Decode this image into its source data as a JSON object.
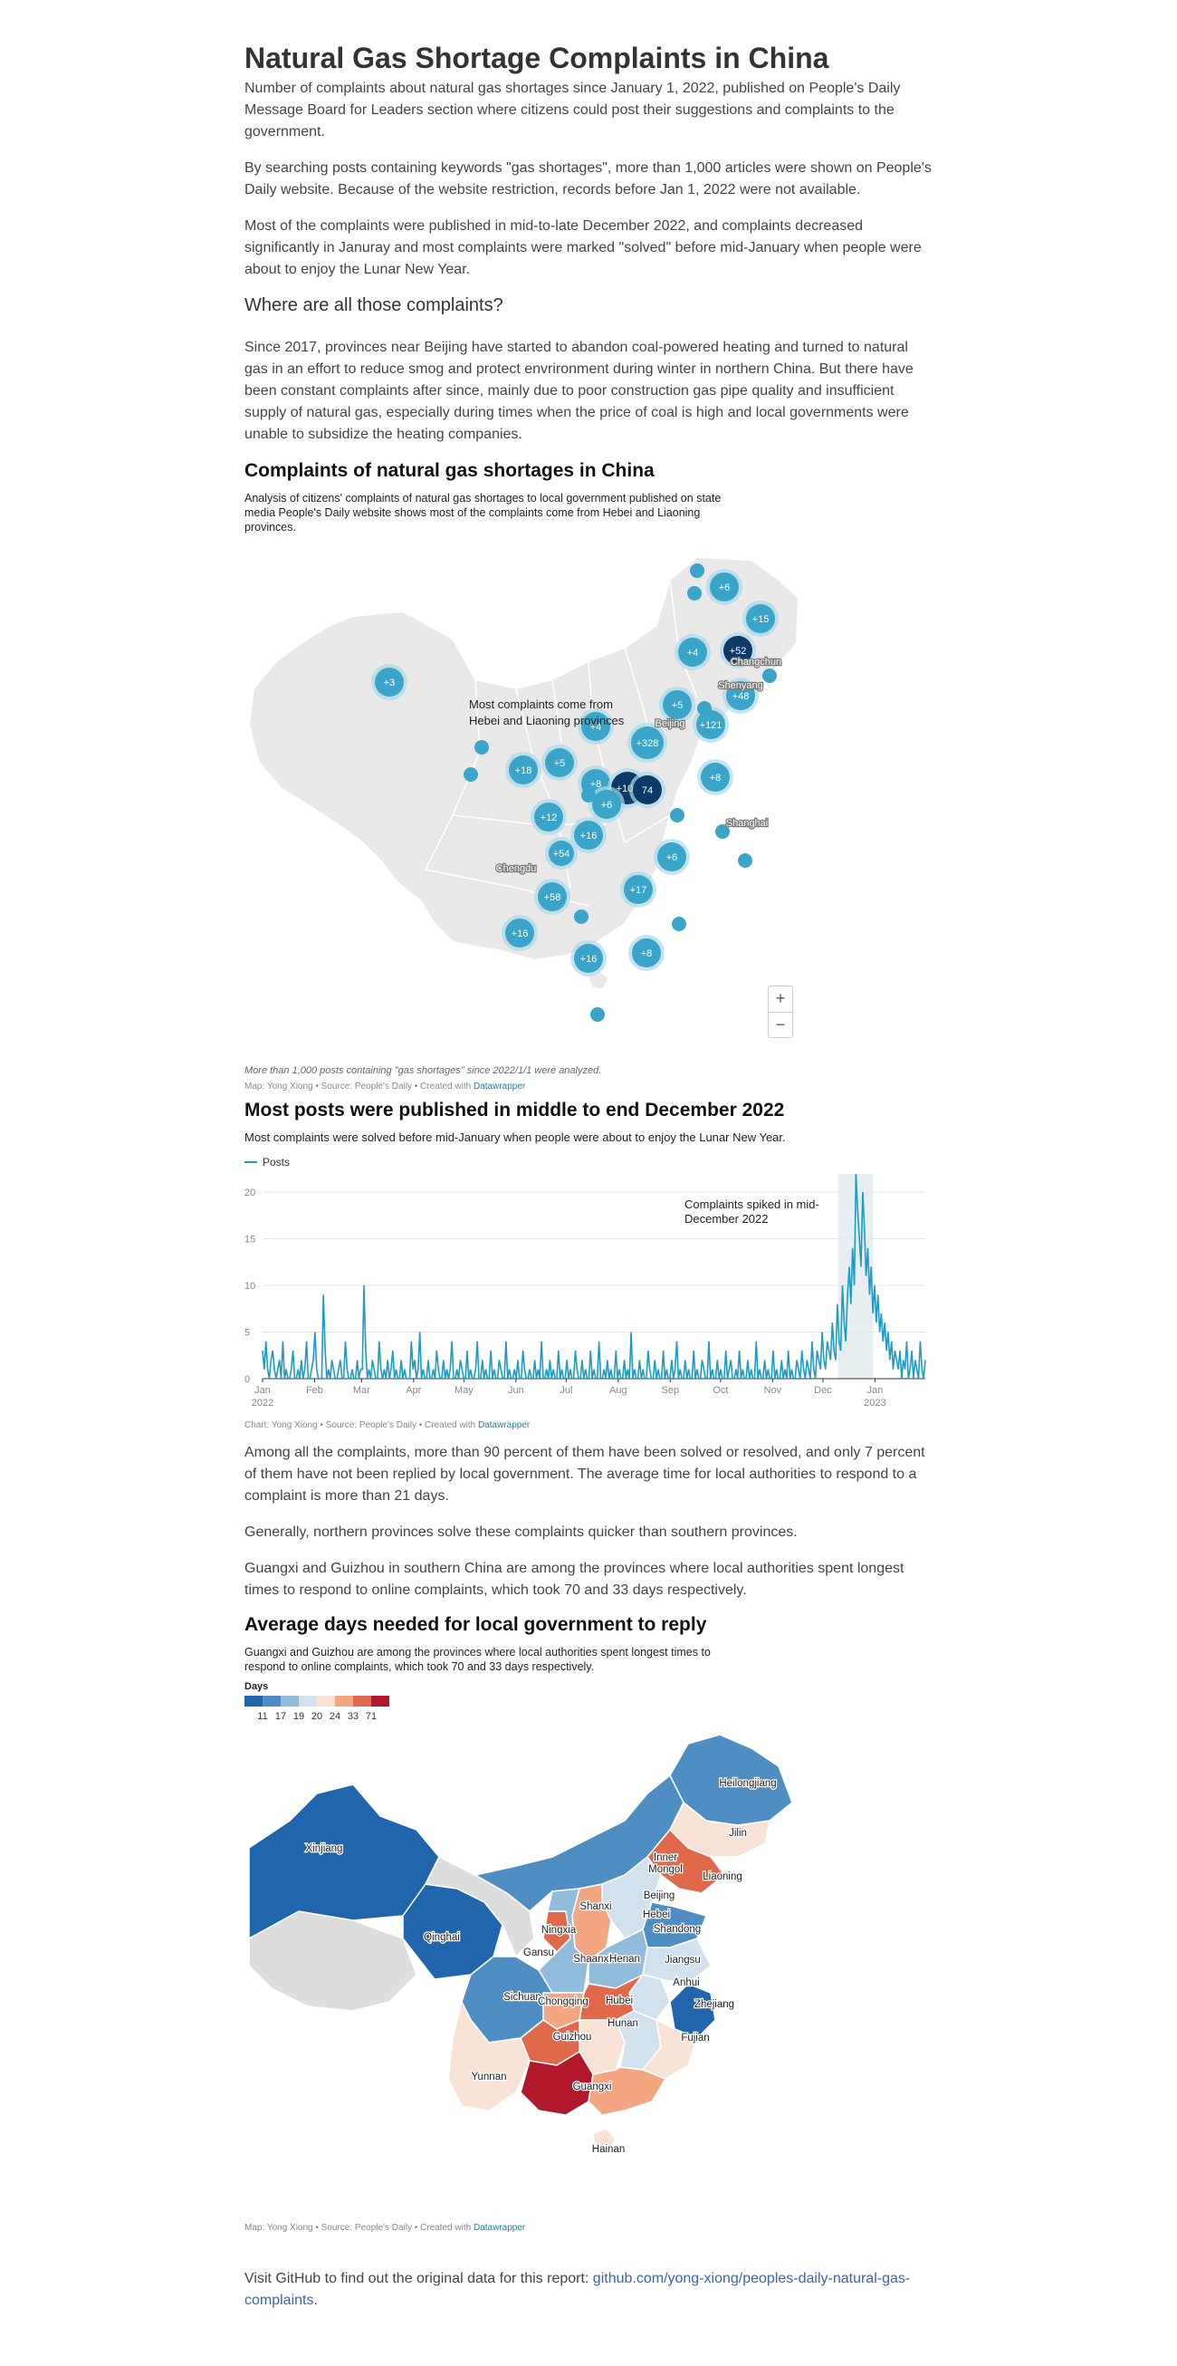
{
  "article": {
    "title": "Natural Gas Shortage Complaints in China",
    "intro_p1": "Number of complaints about natural gas shortages since January 1, 2022, published on People's Daily Message Board for Leaders section where citizens could post their suggestions and complaints to the government.",
    "intro_p2": "By searching posts containing keywords \"gas shortages\", more than 1,000 articles were shown on People's Daily website. Because of the website restriction, records before Jan 1, 2022 were not available.",
    "intro_p3": "Most of the complaints were published in mid-to-late December 2022, and complaints decreased significantly in Januray and most complaints were marked \"solved\" before mid-January when people were about to enjoy the Lunar New Year.",
    "section_heading": "Where are all those complaints?",
    "context_p": "Since 2017, provinces near Beijing have started to abandon coal-powered heating and turned to natural gas in an effort to reduce smog and protect envrironment during winter in northern China. But there have been constant complaints after since, mainly due to poor construction gas pipe quality and insufficient supply of natural gas, especially during times when the price of coal is high and local governments were unable to subsidize the heating companies.",
    "mid_p1": "Among all the complaints, more than 90 percent of them have been solved or resolved, and only 7 percent of them have not been replied by local government. The average time for local authorities to respond to a complaint is more than 21 days.",
    "mid_p2": "Generally, northern provinces solve these complaints quicker than southern provinces.",
    "mid_p3": "Guangxi and Guizhou in southern China are among the provinces where local authorities spent longest times to respond to online complaints, which took 70 and 33 days respectively.",
    "footer_text": "Visit GitHub to find out the original data for this report: ",
    "footer_link_line1": "github.com/yong-xiong/peoples-daily-natural-gas-",
    "footer_link_line2": "complaints",
    "footer_end": "."
  },
  "map1": {
    "title": "Complaints of natural gas shortages in China",
    "desc_line1": "Analysis of citizens' complaints of natural gas shortages to local government published on state",
    "desc_line2": "media People's Daily website shows most of the complaints come from Hebei and Liaoning",
    "desc_line3": "provinces.",
    "annotation_line1": "Most complaints come from",
    "annotation_line2": "Hebei and Liaoning provinces",
    "note": "More than 1,000 posts containing \"gas shortages\" since 2022/1/1 were analyzed.",
    "byline": "Map: Yong Xiong • Source: People's Daily • Created with ",
    "byline_link": "Datawrapper",
    "zoom_in": "+",
    "zoom_out": "−",
    "city_labels": [
      "Changchun",
      "Shenyang",
      "Beijing",
      "Shanghai",
      "Chengdu"
    ],
    "cluster_labels": [
      "+6",
      "+15",
      "+4",
      "+52",
      "+48",
      "+5",
      "+121",
      "+3",
      "+4",
      "+328",
      "+18",
      "+5",
      "+8",
      "+105",
      "74",
      "+6",
      "+12",
      "+16",
      "+54",
      "+6",
      "+17",
      "+58",
      "+16",
      "+16",
      "+8",
      "+8"
    ]
  },
  "chart_data": {
    "type": "line",
    "title": "Most posts were published in middle to end December 2022",
    "subtitle": "Most complaints were solved before mid-January when people were about to enjoy the Lunar New Year.",
    "legend": "Posts",
    "series": [
      {
        "name": "Posts",
        "color": "#1d9bc7"
      }
    ],
    "ylim": [
      0,
      20
    ],
    "y_ticks": [
      "20",
      "15",
      "10",
      "5",
      "0"
    ],
    "x_ticks": [
      "Jan",
      "Feb",
      "Mar",
      "Apr",
      "May",
      "Jun",
      "Jul",
      "Aug",
      "Sep",
      "Oct",
      "Nov",
      "Dec",
      "Jan"
    ],
    "x_tick_years": [
      "2022",
      "2023"
    ],
    "highlight_range": [
      "2022-12-10",
      "2022-12-31"
    ],
    "annotation_line1": "Complaints spiked in mid-",
    "annotation_line2": "December 2022",
    "byline": "Chart: Yong Xiong • Source: People's Daily • Created with ",
    "byline_link": "Datawrapper",
    "x_start": "2022-01-01",
    "values": [
      3,
      1,
      4,
      1,
      0,
      2,
      3,
      1,
      0,
      1,
      2,
      0,
      4,
      0,
      1,
      0,
      0,
      1,
      3,
      0,
      0,
      1,
      0,
      2,
      0,
      1,
      4,
      0,
      0,
      1,
      2,
      5,
      1,
      0,
      0,
      0,
      9,
      3,
      0,
      1,
      0,
      2,
      1,
      0,
      0,
      1,
      2,
      0,
      0,
      4,
      1,
      0,
      0,
      1,
      0,
      0,
      2,
      0,
      1,
      1,
      10,
      3,
      0,
      1,
      0,
      2,
      1,
      0,
      0,
      4,
      1,
      0,
      1,
      0,
      2,
      0,
      1,
      3,
      0,
      1,
      0,
      0,
      2,
      0,
      1,
      0,
      0,
      0,
      4,
      1,
      2,
      0,
      1,
      5,
      0,
      1,
      0,
      0,
      2,
      0,
      0,
      1,
      0,
      3,
      1,
      0,
      0,
      2,
      0,
      1,
      0,
      1,
      4,
      0,
      0,
      1,
      0,
      2,
      1,
      0,
      0,
      3,
      0,
      1,
      0,
      0,
      1,
      4,
      0,
      0,
      2,
      0,
      1,
      0,
      0,
      3,
      0,
      1,
      0,
      0,
      2,
      1,
      0,
      0,
      4,
      0,
      1,
      0,
      0,
      1,
      0,
      2,
      0,
      0,
      3,
      1,
      0,
      0,
      1,
      0,
      0,
      2,
      0,
      1,
      0,
      4,
      0,
      0,
      1,
      0,
      2,
      0,
      1,
      0,
      0,
      3,
      0,
      1,
      0,
      0,
      2,
      0,
      1,
      0,
      0,
      3,
      1,
      0,
      0,
      2,
      0,
      1,
      0,
      0,
      3,
      0,
      1,
      0,
      0,
      4,
      0,
      0,
      1,
      0,
      2,
      0,
      1,
      0,
      0,
      3,
      0,
      1,
      0,
      0,
      2,
      0,
      1,
      0,
      5,
      0,
      1,
      0,
      0,
      2,
      0,
      1,
      0,
      0,
      3,
      1,
      0,
      0,
      2,
      0,
      1,
      0,
      0,
      3,
      0,
      1,
      0,
      0,
      2,
      0,
      1,
      4,
      0,
      1,
      0,
      0,
      2,
      0,
      1,
      0,
      0,
      3,
      0,
      1,
      0,
      0,
      2,
      1,
      0,
      0,
      4,
      0,
      1,
      0,
      0,
      2,
      0,
      1,
      0,
      0,
      3,
      0,
      1,
      2,
      0,
      0,
      1,
      0,
      3,
      0,
      1,
      0,
      0,
      2,
      0,
      1,
      0,
      0,
      4,
      0,
      1,
      0,
      0,
      2,
      0,
      1,
      0,
      0,
      3,
      0,
      1,
      0,
      0,
      2,
      0,
      1,
      0,
      3,
      0,
      1,
      0,
      0,
      2,
      1,
      0,
      3,
      1,
      0,
      2,
      1,
      0,
      4,
      1,
      0,
      3,
      2,
      1,
      5,
      2,
      1,
      4,
      3,
      2,
      6,
      3,
      2,
      8,
      4,
      3,
      10,
      6,
      4,
      9,
      12,
      8,
      14,
      10,
      22,
      18,
      15,
      12,
      20,
      16,
      11,
      14,
      9,
      12,
      7,
      10,
      6,
      9,
      5,
      7,
      4,
      6,
      3,
      5,
      2,
      4,
      1,
      3,
      2,
      1,
      3,
      0,
      2,
      1,
      4,
      0,
      1,
      3,
      0,
      2,
      1,
      0,
      4,
      1,
      0,
      2
    ]
  },
  "map2": {
    "title": "Average days needed for local government to reply",
    "desc_line1": "Guangxi and Guizhou are among the provinces where local authorities spent longest times to",
    "desc_line2": "respond to online complaints, which took 70 and 33 days respectively.",
    "legend_title": "Days",
    "legend_ticks": [
      "11",
      "17",
      "19",
      "20",
      "24",
      "33",
      "71"
    ],
    "legend_colors": [
      "#2166ac",
      "#4e8ec3",
      "#92bcdb",
      "#d2e1ee",
      "#f7e2d5",
      "#f4a582",
      "#e0694b",
      "#b2182b"
    ],
    "province_labels": [
      "Heilongjiang",
      "Jilin",
      "Liaoning",
      "Inner Mongol",
      "Beijing",
      "Hebei",
      "Shandong",
      "Xinjiang",
      "Qinghai",
      "Ningxia",
      "Shanxi",
      "Gansu",
      "Shaanxi",
      "Henan",
      "Jiangsu",
      "Anhui",
      "Sichuan",
      "Chongqing",
      "Hubei",
      "Zhejiang",
      "Hunan",
      "Guizhou",
      "Fujian",
      "Yunnan",
      "Guangxi",
      "Hainan"
    ],
    "byline": "Map: Yong Xiong • Source: People's Daily • Created with ",
    "byline_link": "Datawrapper"
  },
  "colors": {
    "bubble": "#3aa5c8",
    "bubble_ring": "#a9d8ea",
    "bubble_dark": "#0b3a66",
    "land": "#e8e8e8",
    "border": "#ffffff",
    "link": "#3b62b5",
    "datawrapper_link": "#1d81a2"
  }
}
